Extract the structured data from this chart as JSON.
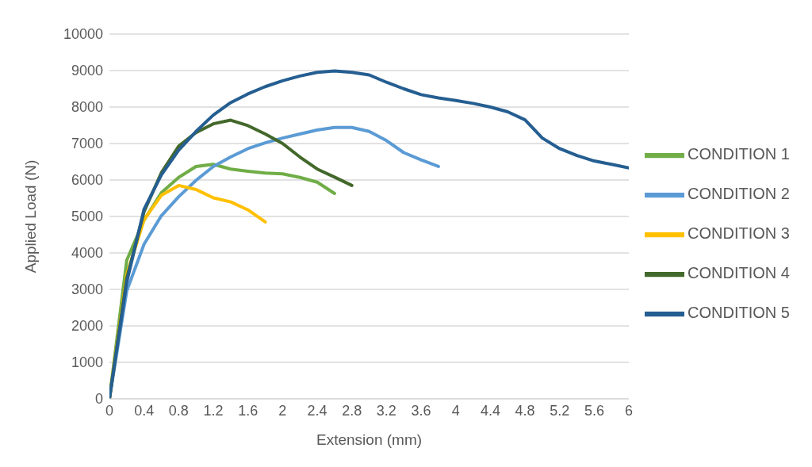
{
  "chart_data": {
    "type": "line",
    "xlabel": "Extension (mm)",
    "ylabel": "Applied Load (N)",
    "x": [
      0,
      0.2,
      0.4,
      0.6,
      0.8,
      1.0,
      1.2,
      1.4,
      1.6,
      1.8,
      2.0,
      2.2,
      2.4,
      2.6,
      2.8,
      3.0,
      3.2,
      3.4,
      3.6,
      3.8,
      4.0,
      4.2,
      4.4,
      4.6,
      4.8,
      5.0,
      5.2,
      5.4,
      5.6,
      5.8,
      6.0
    ],
    "series": [
      {
        "name": "CONDITION 1",
        "color": "#70ad47",
        "values": [
          0,
          3800,
          4900,
          5650,
          6070,
          6370,
          6430,
          6300,
          6240,
          6190,
          6170,
          6070,
          5940,
          5630,
          null,
          null,
          null,
          null,
          null,
          null,
          null,
          null,
          null,
          null,
          null,
          null,
          null,
          null,
          null,
          null,
          null
        ]
      },
      {
        "name": "CONDITION 2",
        "color": "#5b9bd5",
        "values": [
          0,
          2960,
          4240,
          5020,
          5540,
          5990,
          6370,
          6630,
          6860,
          7020,
          7150,
          7260,
          7370,
          7440,
          7440,
          7330,
          7080,
          6750,
          6550,
          6370,
          null,
          null,
          null,
          null,
          null,
          null,
          null,
          null,
          null,
          null,
          null
        ]
      },
      {
        "name": "CONDITION 3",
        "color": "#ffc000",
        "values": [
          0,
          3400,
          4910,
          5580,
          5850,
          5740,
          5510,
          5400,
          5180,
          4850,
          null,
          null,
          null,
          null,
          null,
          null,
          null,
          null,
          null,
          null,
          null,
          null,
          null,
          null,
          null,
          null,
          null,
          null,
          null,
          null,
          null
        ]
      },
      {
        "name": "CONDITION 4",
        "color": "#43682b",
        "values": [
          0,
          3300,
          5130,
          6200,
          6930,
          7300,
          7540,
          7640,
          7490,
          7260,
          7000,
          6630,
          6300,
          6080,
          5850,
          null,
          null,
          null,
          null,
          null,
          null,
          null,
          null,
          null,
          null,
          null,
          null,
          null,
          null,
          null,
          null
        ]
      },
      {
        "name": "CONDITION 5",
        "color": "#255e91",
        "values": [
          0,
          3200,
          5200,
          6140,
          6820,
          7330,
          7780,
          8120,
          8360,
          8560,
          8720,
          8850,
          8950,
          8990,
          8950,
          8880,
          8680,
          8500,
          8340,
          8250,
          8180,
          8100,
          8000,
          7870,
          7650,
          7150,
          6860,
          6670,
          6520,
          6430,
          6330
        ]
      }
    ],
    "xlim": [
      0,
      6
    ],
    "xticks": [
      0,
      0.4,
      0.8,
      1.2,
      1.6,
      2,
      2.4,
      2.8,
      3.2,
      3.6,
      4,
      4.4,
      4.8,
      5.2,
      5.6,
      6
    ],
    "ylim": [
      0,
      10000
    ],
    "yticks": [
      0,
      1000,
      2000,
      3000,
      4000,
      5000,
      6000,
      7000,
      8000,
      9000,
      10000
    ],
    "grid": "y",
    "legend": "right",
    "marker": "none",
    "line_style": "solid"
  }
}
